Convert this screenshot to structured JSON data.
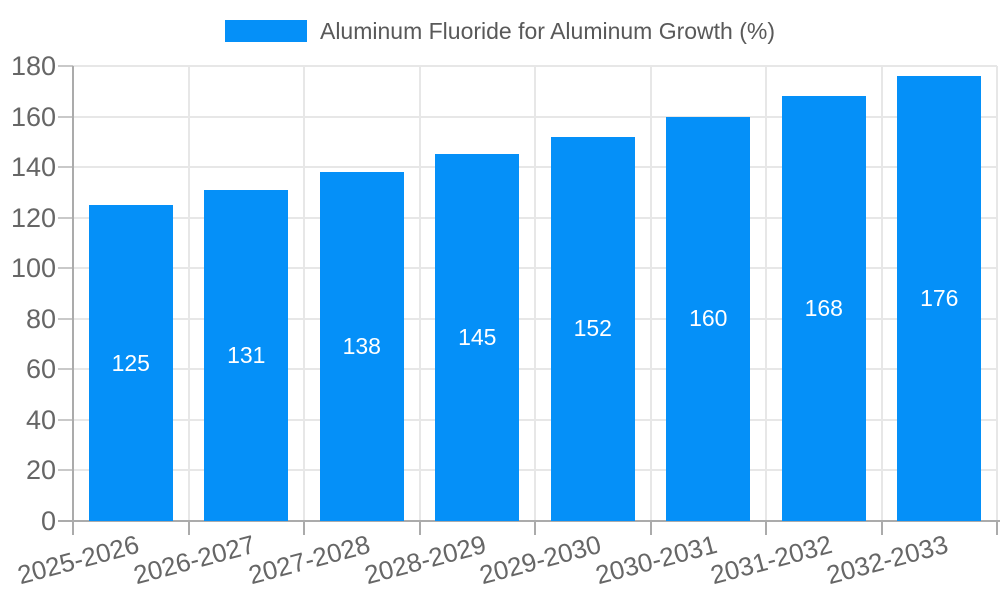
{
  "legend": {
    "items": [
      {
        "label": "Aluminum Fluoride for Aluminum Growth (%)",
        "color": "#0590F8"
      }
    ]
  },
  "chart_data": {
    "type": "bar",
    "title": "",
    "categories": [
      "2025-2026",
      "2026-2027",
      "2027-2028",
      "2028-2029",
      "2029-2030",
      "2030-2031",
      "2031-2032",
      "2032-2033"
    ],
    "series": [
      {
        "name": "Aluminum Fluoride for Aluminum Growth (%)",
        "values": [
          125,
          131,
          138,
          145,
          152,
          160,
          168,
          176
        ],
        "color": "#0590F8"
      }
    ],
    "xlabel": "",
    "ylabel": "",
    "ylim": [
      0,
      180
    ],
    "ytick_step": 20,
    "yticks": [
      0,
      20,
      40,
      60,
      80,
      100,
      120,
      140,
      160,
      180
    ],
    "grid": true,
    "bar_labels_visible": true,
    "bar_label_position": "middle",
    "legend_position": "top-center",
    "x_label_rotation_deg": -15
  },
  "colors": {
    "background": "#FFFFFF",
    "bar": "#0590F8",
    "grid_line": "#E7E7E7",
    "axis_line": "#ABABAB",
    "tick_mark": "#C9C9C9",
    "tick_text": "#666666",
    "legend_text": "#595959",
    "bar_label": "#FFFFFF"
  }
}
